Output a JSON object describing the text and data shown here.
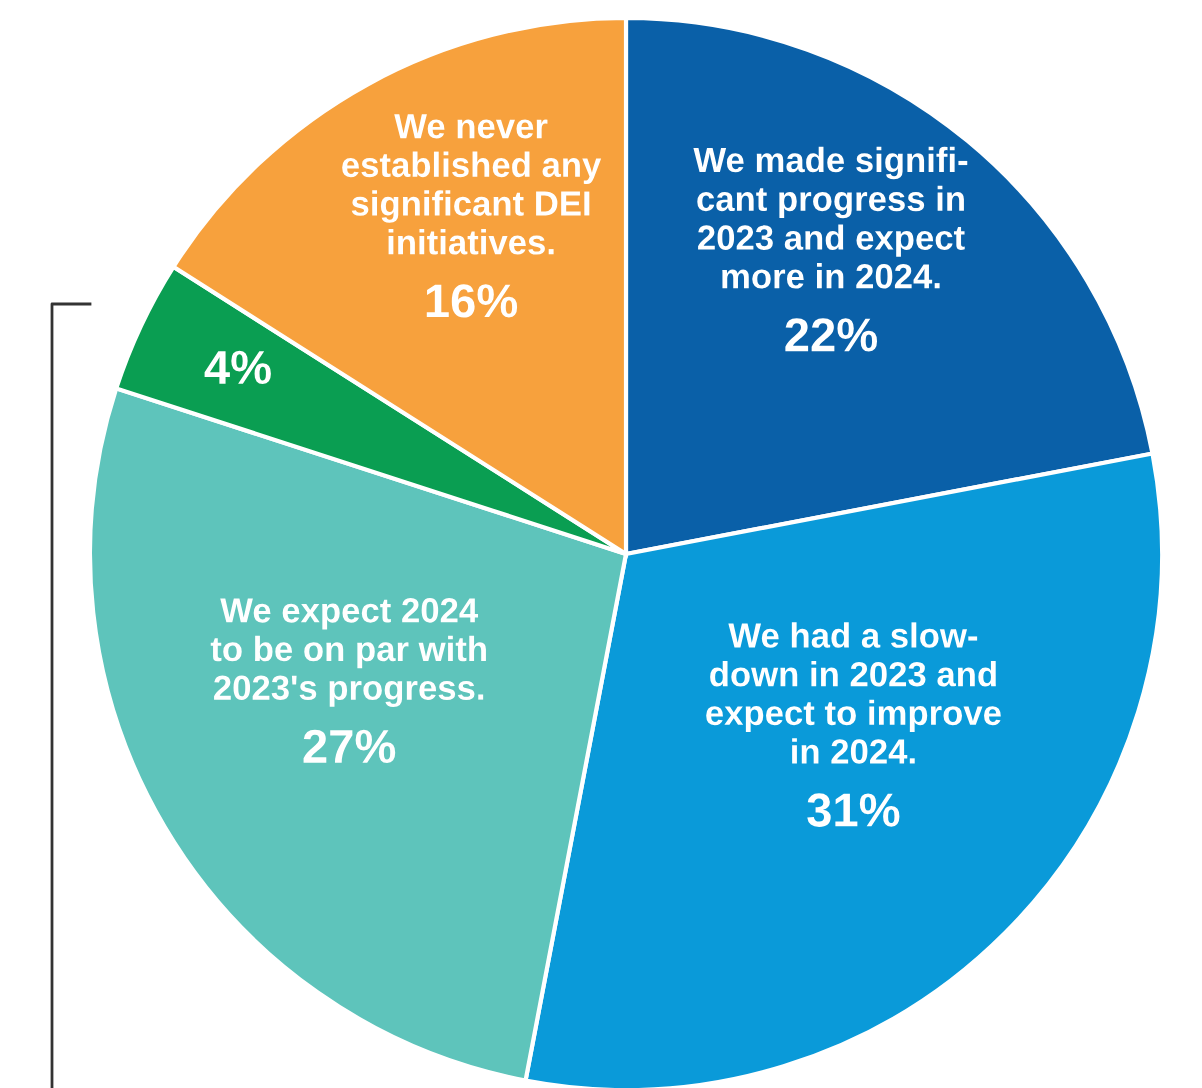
{
  "chart_data": {
    "type": "pie",
    "categories": [
      "We made signifi-\ncant progress in\n2023 and expect\nmore in 2024.",
      "We had a slow-\ndown in 2023 and\nexpect to improve\nin 2024.",
      "We expect 2024\nto be on par with\n2023's progress.",
      null,
      "We never\nestablished any\nsignificant DEI\ninitiatives."
    ],
    "values": [
      22,
      31,
      27,
      4,
      16
    ],
    "value_labels": [
      "22%",
      "31%",
      "27%",
      "4%",
      "16%"
    ],
    "colors": [
      "#0a60a8",
      "#0a9ad9",
      "#5ec4bb",
      "#0a9e52",
      "#f7a13d"
    ]
  }
}
